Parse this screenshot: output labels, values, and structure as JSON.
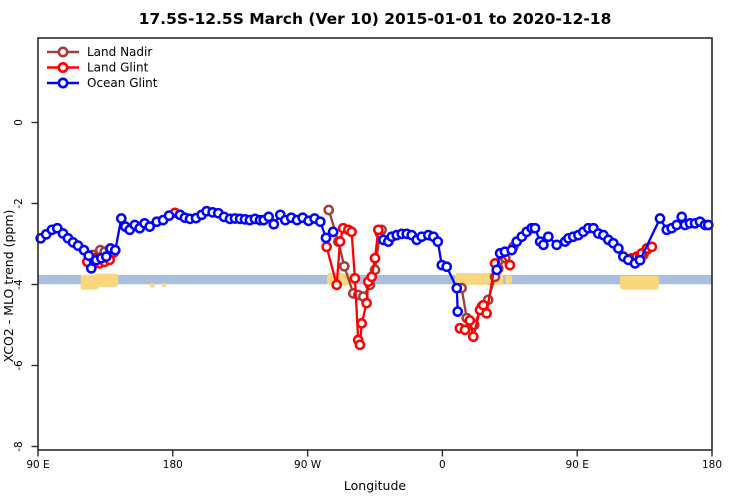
{
  "figure": {
    "title": "17.5S-12.5S March (Ver 10)   2015-01-01 to 2020-12-18"
  },
  "chart_data": {
    "type": "line",
    "title": "17.5S-12.5S March (Ver 10)   2015-01-01 to 2020-12-18",
    "xlabel": "Longitude",
    "ylabel": "XCO2 - MLO trend (ppm)",
    "marker": "open-circle",
    "legend_position": "top-left",
    "grid": false,
    "x_axis": {
      "description": "Longitude wrapping eastward: 90E -> 180 -> 90W -> 0 -> 90E -> 180; positions in degrees east of 90E",
      "range_deg": [
        0,
        450
      ],
      "ticks": [
        {
          "pos": 0,
          "label": "90 E"
        },
        {
          "pos": 90,
          "label": "180"
        },
        {
          "pos": 180,
          "label": "90 W"
        },
        {
          "pos": 270,
          "label": "0"
        },
        {
          "pos": 360,
          "label": "90 E"
        },
        {
          "pos": 450,
          "label": "180"
        }
      ]
    },
    "y_axis": {
      "range": [
        -8.09,
        2.09
      ],
      "ticks": [
        0,
        -2,
        -4,
        -6,
        -8
      ]
    },
    "reference_band": {
      "v_top": -3.765,
      "v_bottom": -3.995,
      "color": "#AABFDD"
    },
    "highlight_color": "#FAD67E",
    "highlights": [
      {
        "t0": 28.5,
        "t1": 40.5,
        "v0": -3.76,
        "v1": -4.13
      },
      {
        "t0": 38.0,
        "t1": 53.5,
        "v0": -3.73,
        "v1": -4.06
      },
      {
        "t0": 74.5,
        "t1": 78.0,
        "v0": -3.96,
        "v1": -4.08
      },
      {
        "t0": 82.5,
        "t1": 86.0,
        "v0": -3.96,
        "v1": -4.06
      },
      {
        "t0": 193.0,
        "t1": 212.5,
        "v0": -3.72,
        "v1": -4.01
      },
      {
        "t0": 278.5,
        "t1": 310.5,
        "v0": -3.72,
        "v1": -4.01
      },
      {
        "t0": 312.0,
        "t1": 316.5,
        "v0": -3.77,
        "v1": -3.99
      },
      {
        "t0": 388.5,
        "t1": 414.5,
        "v0": -3.79,
        "v1": -4.13
      }
    ],
    "series": [
      {
        "name": "Land Nadir",
        "color": "#A33E3E",
        "segments": [
          [
            [
              36.7,
              -3.27
            ],
            [
              41.5,
              -3.15
            ],
            [
              44.5,
              -3.19
            ],
            [
              48.0,
              -3.12
            ]
          ],
          [
            [
              194.1,
              -2.16
            ],
            [
              200.5,
              -2.94
            ],
            [
              204.5,
              -3.55
            ],
            [
              210.5,
              -4.22
            ],
            [
              213.8,
              -4.26
            ],
            [
              217.2,
              -4.3
            ],
            [
              221.6,
              -4.01
            ],
            [
              225.0,
              -3.64
            ],
            [
              228.3,
              -2.74
            ],
            [
              229.4,
              -2.65
            ]
          ],
          [
            [
              282.8,
              -4.09
            ],
            [
              286.2,
              -4.83
            ],
            [
              291.3,
              -5.0
            ],
            [
              296.2,
              -4.55
            ],
            [
              300.6,
              -4.38
            ],
            [
              305.1,
              -3.81
            ],
            [
              307.3,
              -3.6
            ],
            [
              312.0,
              -3.35
            ],
            [
              317.4,
              -3.07
            ]
          ],
          [
            [
              400.4,
              -3.35
            ],
            [
              404.2,
              -3.27
            ],
            [
              406.5,
              -3.15
            ]
          ]
        ]
      },
      {
        "name": "Land Glint",
        "color": "#FF0000",
        "segments": [
          [
            [
              32.9,
              -3.44
            ],
            [
              37.9,
              -3.35
            ],
            [
              41.2,
              -3.48
            ],
            [
              44.5,
              -3.44
            ],
            [
              47.9,
              -3.39
            ],
            [
              50.7,
              -3.21
            ]
          ],
          [
            [
              91.5,
              -2.23
            ]
          ],
          [
            [
              192.7,
              -3.07
            ],
            [
              199.4,
              -4.01
            ],
            [
              201.6,
              -2.94
            ],
            [
              203.8,
              -2.61
            ],
            [
              207.2,
              -2.65
            ],
            [
              209.4,
              -2.7
            ],
            [
              211.6,
              -3.85
            ],
            [
              213.8,
              -5.37
            ],
            [
              214.9,
              -5.49
            ],
            [
              216.1,
              -4.96
            ],
            [
              219.4,
              -4.46
            ],
            [
              220.5,
              -3.93
            ],
            [
              222.8,
              -3.81
            ],
            [
              225.0,
              -3.35
            ],
            [
              227.2,
              -2.65
            ]
          ],
          [
            [
              281.7,
              -5.08
            ],
            [
              285.1,
              -5.12
            ],
            [
              288.3,
              -4.89
            ],
            [
              290.6,
              -5.29
            ],
            [
              295.1,
              -4.63
            ],
            [
              297.3,
              -4.51
            ],
            [
              299.5,
              -4.71
            ],
            [
              305.1,
              -3.48
            ],
            [
              309.0,
              -3.23
            ],
            [
              315.1,
              -3.52
            ]
          ],
          [
            [
              396.4,
              -3.35
            ],
            [
              399.8,
              -3.31
            ],
            [
              402.0,
              -3.31
            ],
            [
              403.1,
              -3.23
            ],
            [
              406.5,
              -3.11
            ],
            [
              409.8,
              -3.07
            ]
          ]
        ]
      },
      {
        "name": "Ocean Glint",
        "color": "#0000FF",
        "segments": [
          [
            [
              1.8,
              -2.86
            ],
            [
              5.5,
              -2.76
            ],
            [
              9.3,
              -2.65
            ],
            [
              12.9,
              -2.61
            ],
            [
              16.7,
              -2.74
            ],
            [
              20.0,
              -2.86
            ],
            [
              23.4,
              -2.96
            ],
            [
              26.7,
              -3.04
            ],
            [
              30.7,
              -3.15
            ],
            [
              33.9,
              -3.29
            ],
            [
              35.6,
              -3.6
            ],
            [
              38.9,
              -3.4
            ],
            [
              42.3,
              -3.35
            ],
            [
              45.6,
              -3.31
            ],
            [
              48.5,
              -3.11
            ],
            [
              51.6,
              -3.15
            ],
            [
              55.6,
              -2.37
            ],
            [
              58.3,
              -2.57
            ],
            [
              61.2,
              -2.65
            ],
            [
              64.6,
              -2.53
            ],
            [
              67.9,
              -2.61
            ],
            [
              71.2,
              -2.49
            ],
            [
              74.6,
              -2.57
            ],
            [
              79.3,
              -2.45
            ],
            [
              83.5,
              -2.41
            ],
            [
              87.5,
              -2.3
            ],
            [
              94.8,
              -2.28
            ],
            [
              98.1,
              -2.35
            ],
            [
              101.5,
              -2.38
            ],
            [
              105.5,
              -2.36
            ],
            [
              109.3,
              -2.28
            ],
            [
              112.6,
              -2.19
            ],
            [
              116.6,
              -2.22
            ],
            [
              120.4,
              -2.24
            ],
            [
              124.2,
              -2.33
            ],
            [
              128.2,
              -2.38
            ],
            [
              131.5,
              -2.37
            ],
            [
              134.9,
              -2.38
            ],
            [
              138.2,
              -2.39
            ],
            [
              141.5,
              -2.41
            ],
            [
              144.9,
              -2.38
            ],
            [
              148.2,
              -2.41
            ],
            [
              150.7,
              -2.41
            ],
            [
              154.0,
              -2.33
            ],
            [
              157.4,
              -2.51
            ],
            [
              161.8,
              -2.28
            ],
            [
              165.1,
              -2.41
            ],
            [
              169.1,
              -2.35
            ],
            [
              172.9,
              -2.41
            ],
            [
              176.7,
              -2.35
            ],
            [
              180.7,
              -2.43
            ],
            [
              184.7,
              -2.37
            ],
            [
              188.5,
              -2.45
            ],
            [
              192.3,
              -2.85
            ],
            [
              197.0,
              -2.7
            ]
          ],
          [
            [
              230.6,
              -2.9
            ],
            [
              233.9,
              -2.94
            ],
            [
              236.2,
              -2.82
            ],
            [
              239.5,
              -2.78
            ],
            [
              242.9,
              -2.75
            ],
            [
              246.2,
              -2.75
            ],
            [
              249.5,
              -2.78
            ],
            [
              252.9,
              -2.9
            ],
            [
              256.2,
              -2.82
            ],
            [
              260.6,
              -2.78
            ],
            [
              264.0,
              -2.82
            ],
            [
              266.9,
              -2.94
            ],
            [
              269.6,
              -3.52
            ],
            [
              272.9,
              -3.56
            ],
            [
              279.6,
              -4.09
            ],
            [
              280.2,
              -4.67
            ]
          ],
          [
            [
              306.3,
              -3.64
            ],
            [
              308.5,
              -3.23
            ],
            [
              311.8,
              -3.19
            ],
            [
              316.3,
              -3.15
            ],
            [
              319.6,
              -2.94
            ],
            [
              323.0,
              -2.82
            ],
            [
              326.3,
              -2.7
            ],
            [
              329.6,
              -2.61
            ],
            [
              331.8,
              -2.61
            ],
            [
              335.2,
              -2.94
            ],
            [
              337.4,
              -3.02
            ],
            [
              340.7,
              -2.82
            ],
            [
              346.3,
              -3.02
            ],
            [
              351.9,
              -2.94
            ],
            [
              354.1,
              -2.86
            ],
            [
              357.4,
              -2.82
            ],
            [
              360.8,
              -2.78
            ],
            [
              364.1,
              -2.7
            ],
            [
              367.4,
              -2.61
            ],
            [
              370.8,
              -2.61
            ],
            [
              374.1,
              -2.74
            ],
            [
              377.5,
              -2.78
            ],
            [
              380.8,
              -2.9
            ],
            [
              384.1,
              -2.98
            ],
            [
              387.5,
              -3.11
            ],
            [
              390.8,
              -3.31
            ],
            [
              394.1,
              -3.39
            ],
            [
              398.6,
              -3.48
            ],
            [
              401.9,
              -3.4
            ],
            [
              415.3,
              -2.37
            ],
            [
              419.8,
              -2.65
            ],
            [
              423.1,
              -2.61
            ],
            [
              426.4,
              -2.53
            ],
            [
              429.8,
              -2.33
            ],
            [
              432.0,
              -2.53
            ],
            [
              435.3,
              -2.49
            ],
            [
              438.7,
              -2.49
            ],
            [
              442.0,
              -2.45
            ],
            [
              445.3,
              -2.53
            ],
            [
              447.5,
              -2.53
            ]
          ]
        ]
      }
    ]
  }
}
